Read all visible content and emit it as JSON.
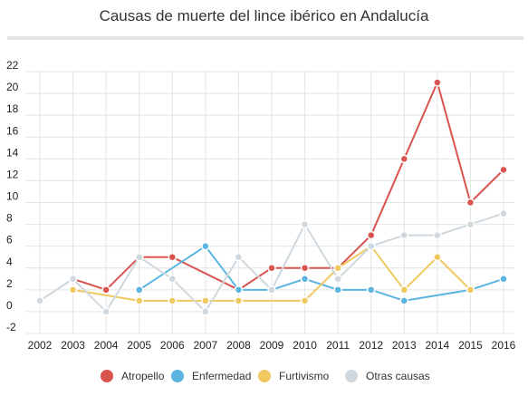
{
  "chart_data": {
    "type": "line",
    "title": "Causas de muerte del lince ibérico en Andalucía",
    "xlabel": "",
    "ylabel": "",
    "categories": [
      "2002",
      "2003",
      "2004",
      "2005",
      "2006",
      "2007",
      "2008",
      "2009",
      "2010",
      "2011",
      "2012",
      "2013",
      "2014",
      "2015",
      "2016"
    ],
    "ylim": [
      -2,
      22
    ],
    "yticks": [
      -2,
      0,
      2,
      4,
      6,
      8,
      10,
      12,
      14,
      16,
      18,
      20,
      22
    ],
    "grid": true,
    "legend_position": "bottom",
    "series": [
      {
        "name": "Atropello",
        "color": "#d9534f",
        "values": [
          null,
          3,
          2,
          5,
          5,
          null,
          2,
          4,
          4,
          4,
          7,
          14,
          21,
          10,
          13
        ]
      },
      {
        "name": "Enfermedad",
        "color": "#5bb5e0",
        "values": [
          null,
          null,
          null,
          2,
          null,
          6,
          2,
          2,
          3,
          2,
          2,
          1,
          null,
          2,
          3
        ]
      },
      {
        "name": "Furtivismo",
        "color": "#f0c860",
        "values": [
          null,
          2,
          null,
          1,
          1,
          1,
          1,
          null,
          1,
          4,
          6,
          2,
          5,
          2,
          null
        ]
      },
      {
        "name": "Otras causas",
        "color": "#cfd8de",
        "values": [
          1,
          3,
          0,
          5,
          3,
          0,
          5,
          2,
          8,
          3,
          6,
          7,
          7,
          8,
          9
        ]
      }
    ]
  }
}
